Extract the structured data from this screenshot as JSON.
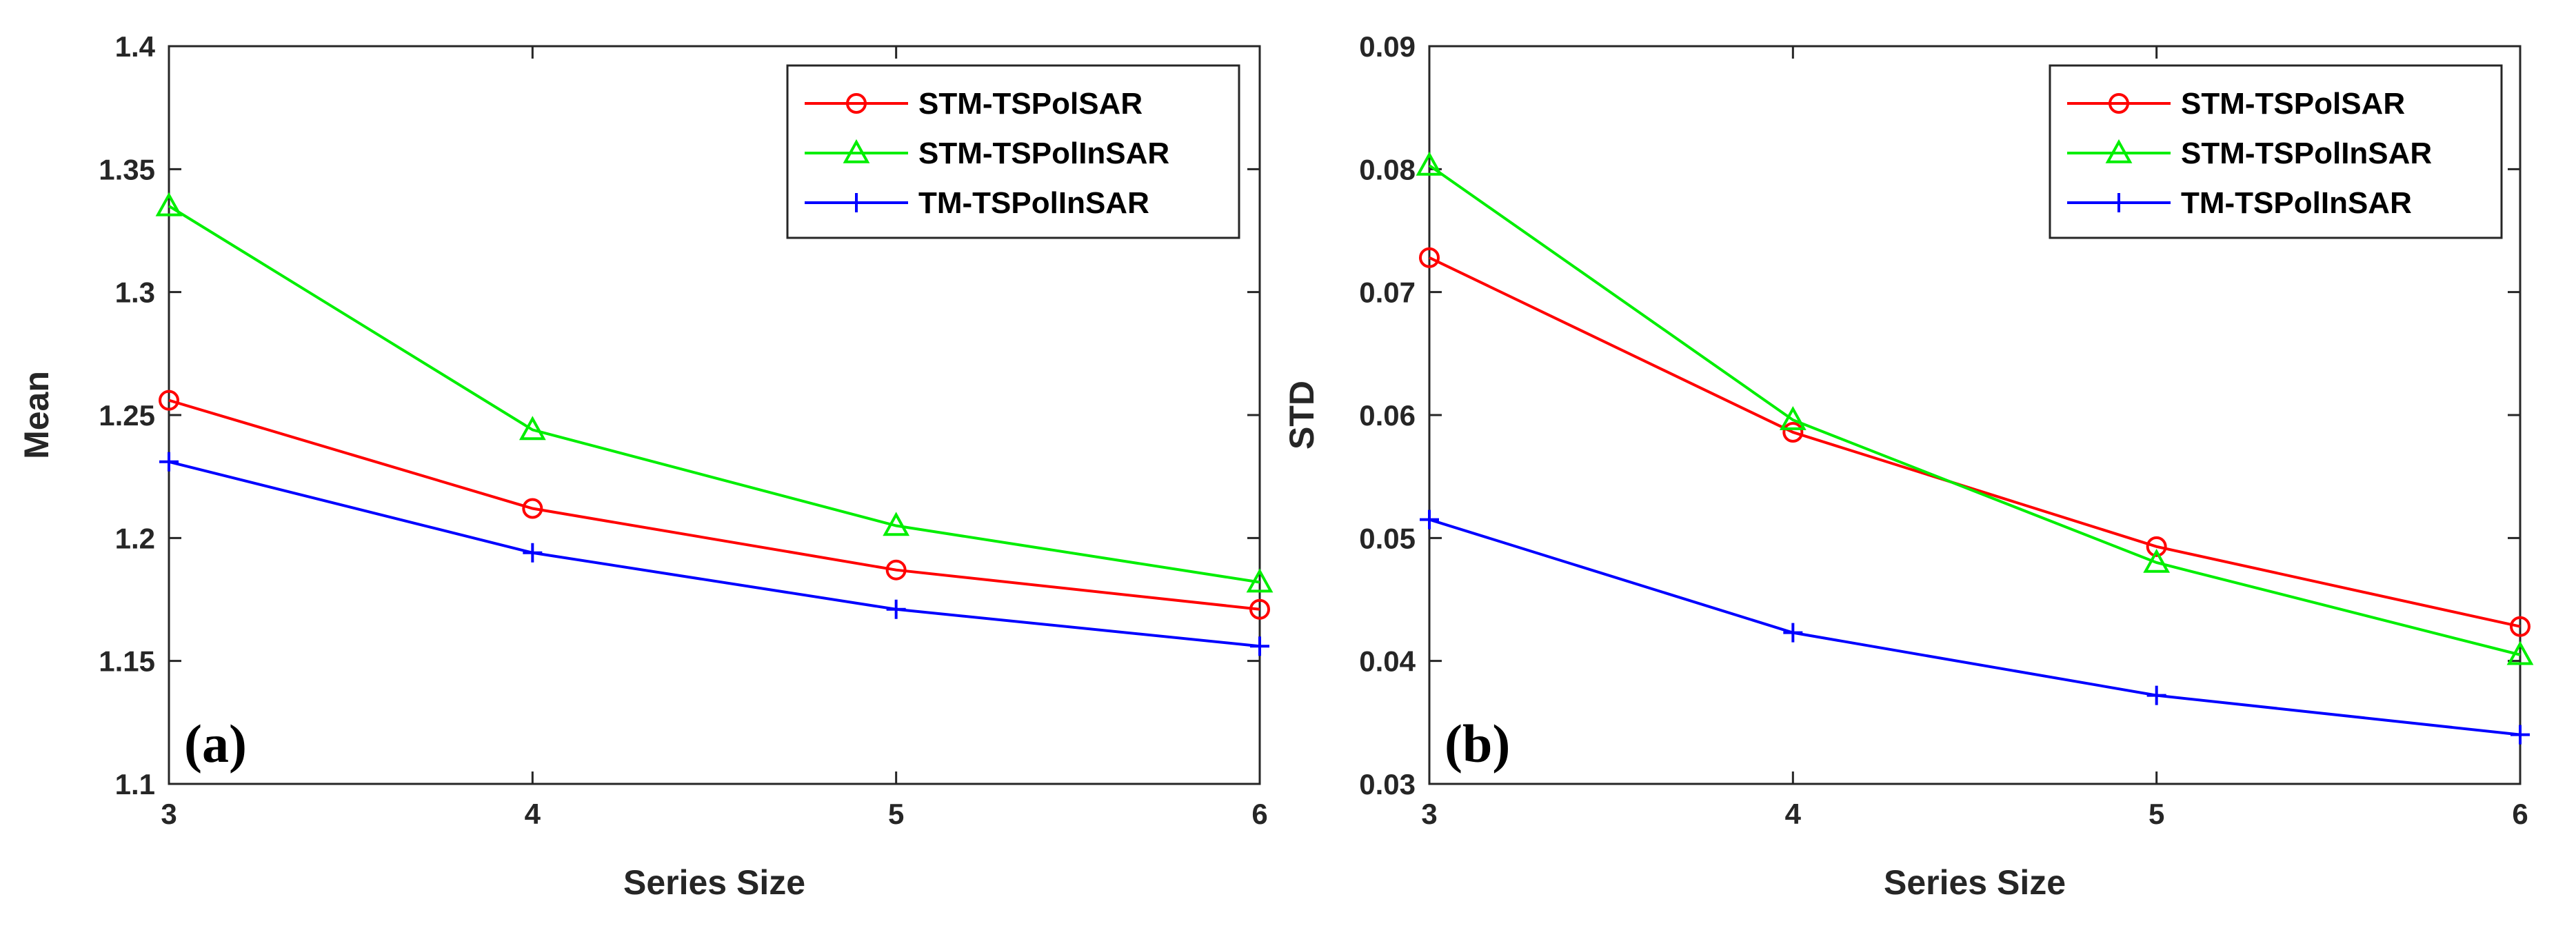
{
  "chart_data": [
    {
      "type": "line",
      "panel_label": "(a)",
      "xlabel": "Series Size",
      "ylabel": "Mean",
      "x": [
        3,
        4,
        5,
        6
      ],
      "xlim": [
        3,
        6
      ],
      "ylim": [
        1.1,
        1.4
      ],
      "xticks": [
        "3",
        "4",
        "5",
        "6"
      ],
      "yticks": [
        "1.1",
        "1.15",
        "1.2",
        "1.25",
        "1.3",
        "1.35",
        "1.4"
      ],
      "legend_position": "top-right",
      "grid": false,
      "series": [
        {
          "name": "STM-TSPolSAR",
          "color": "#ff0000",
          "marker": "circle",
          "values": [
            1.256,
            1.212,
            1.187,
            1.171
          ]
        },
        {
          "name": "STM-TSPolInSAR",
          "color": "#00ee00",
          "marker": "triangle",
          "values": [
            1.335,
            1.244,
            1.205,
            1.182
          ]
        },
        {
          "name": "TM-TSPolInSAR",
          "color": "#0000ff",
          "marker": "plus",
          "values": [
            1.231,
            1.194,
            1.171,
            1.156
          ]
        }
      ]
    },
    {
      "type": "line",
      "panel_label": "(b)",
      "xlabel": "Series Size",
      "ylabel": "STD",
      "x": [
        3,
        4,
        5,
        6
      ],
      "xlim": [
        3,
        6
      ],
      "ylim": [
        0.03,
        0.09
      ],
      "xticks": [
        "3",
        "4",
        "5",
        "6"
      ],
      "yticks": [
        "0.03",
        "0.04",
        "0.05",
        "0.06",
        "0.07",
        "0.08",
        "0.09"
      ],
      "legend_position": "top-right",
      "grid": false,
      "series": [
        {
          "name": "STM-TSPolSAR",
          "color": "#ff0000",
          "marker": "circle",
          "values": [
            0.0728,
            0.0586,
            0.0493,
            0.0428
          ]
        },
        {
          "name": "STM-TSPolInSAR",
          "color": "#00ee00",
          "marker": "triangle",
          "values": [
            0.0803,
            0.0596,
            0.048,
            0.0405
          ]
        },
        {
          "name": "TM-TSPolInSAR",
          "color": "#0000ff",
          "marker": "plus",
          "values": [
            0.0515,
            0.0423,
            0.0372,
            0.034
          ]
        }
      ]
    }
  ]
}
